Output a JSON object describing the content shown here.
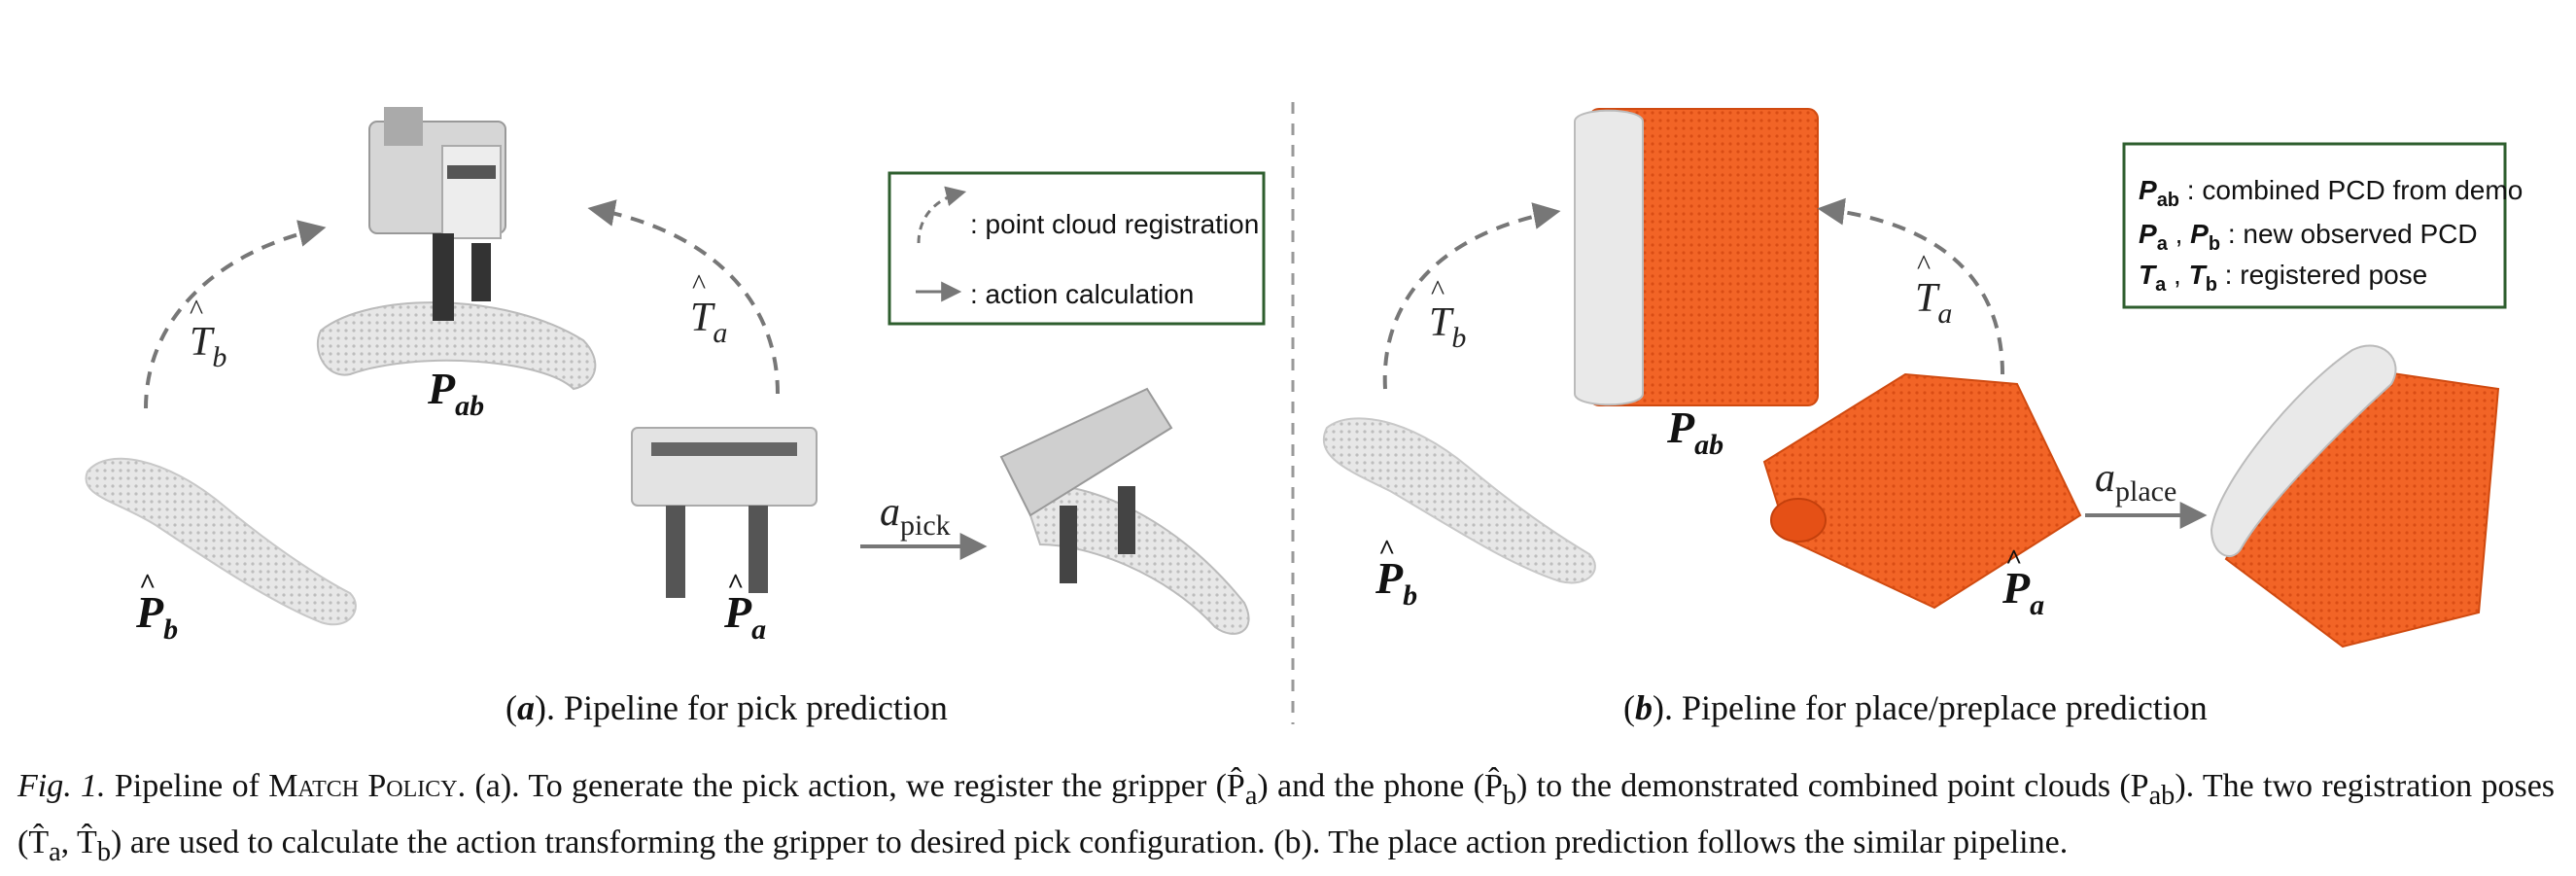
{
  "panel_a": {
    "label_letter": "a",
    "title": ". Pipeline for pick prediction",
    "pab": "P",
    "pab_sub": "ab",
    "pa": "P",
    "pa_sub": "a",
    "pb": "P",
    "pb_sub": "b",
    "ta": "T",
    "ta_sub": "a",
    "tb": "T",
    "tb_sub": "b",
    "action": "a",
    "action_sub": "pick",
    "legend": {
      "registration": ": point cloud registration",
      "action": ": action calculation"
    }
  },
  "panel_b": {
    "label_letter": "b",
    "title": ". Pipeline for place/preplace prediction",
    "pab": "P",
    "pab_sub": "ab",
    "pa": "P",
    "pa_sub": "a",
    "pb": "P",
    "pb_sub": "b",
    "ta": "T",
    "ta_sub": "a",
    "tb": "T",
    "tb_sub": "b",
    "action": "a",
    "action_sub": "place",
    "legend": {
      "line1_sym": "P",
      "line1_sub": "ab",
      "line1": " : combined PCD from demo",
      "line2_sym": "P",
      "line2_sub": "a",
      "line2_mid": " , ",
      "line2_sym2": "P",
      "line2_sub2": "b",
      "line2": " : new observed PCD",
      "line3_sym": "T",
      "line3_sub": "a",
      "line3_mid": " , ",
      "line3_sym2": "T",
      "line3_sub2": "b",
      "line3": " : registered pose"
    }
  },
  "caption": {
    "lead": "Fig. 1.",
    "part1": " Pipeline of ",
    "method": "Match Policy",
    "part2": ". (a). To generate the pick action, we register the gripper (P̂",
    "part2_sub": "a",
    "part3": ") and the phone (P̂",
    "part3_sub": "b",
    "part4": ") to the demonstrated combined point clouds (P",
    "part4_sub": "ab",
    "part5": "). The two registration poses (T̂",
    "part5_sub": "a",
    "part6": ", T̂",
    "part6_sub": "b",
    "part7": ") are used to calculate the action transforming the gripper to desired pick configuration. (b). The place action prediction follows the similar pipeline."
  },
  "colors": {
    "phone": "#f05a1e",
    "gray_object": "#d2d2d2",
    "legend_border": "#2e5e2e",
    "arrow": "#777777"
  }
}
